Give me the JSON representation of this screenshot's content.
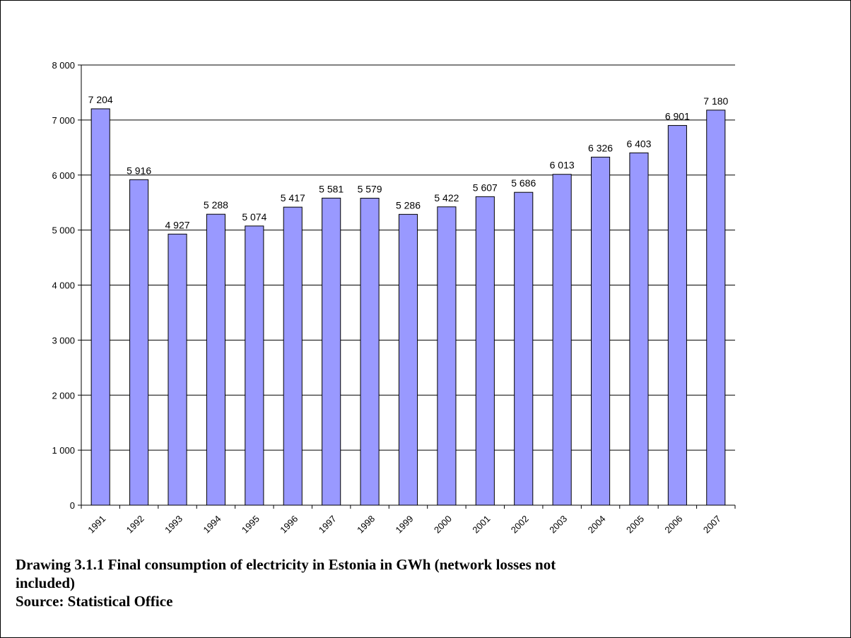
{
  "chart_data": {
    "type": "bar",
    "categories": [
      "1991",
      "1992",
      "1993",
      "1994",
      "1995",
      "1996",
      "1997",
      "1998",
      "1999",
      "2000",
      "2001",
      "2002",
      "2003",
      "2004",
      "2005",
      "2006",
      "2007"
    ],
    "values": [
      7204,
      5916,
      4927,
      5288,
      5074,
      5417,
      5581,
      5579,
      5286,
      5422,
      5607,
      5686,
      6013,
      6326,
      6403,
      6901,
      7180
    ],
    "value_labels": [
      "7 204",
      "5 916",
      "4 927",
      "5 288",
      "5 074",
      "5 417",
      "5 581",
      "5 579",
      "5 286",
      "5 422",
      "5 607",
      "5 686",
      "6 013",
      "6 326",
      "6 403",
      "6 901",
      "7 180"
    ],
    "yticks": [
      "0",
      "1 000",
      "2 000",
      "3 000",
      "4 000",
      "5 000",
      "6 000",
      "7 000",
      "8 000"
    ],
    "ylim": [
      0,
      8000
    ],
    "grid": true,
    "bar_color": "#9999ff",
    "bar_outline": "#000000",
    "title": "",
    "xlabel": "",
    "ylabel": ""
  },
  "caption": {
    "line1": "Drawing 3.1.1 Final consumption of electricity in Estonia in GWh (network losses not",
    "line2": "included)",
    "source": "Source: Statistical Office"
  }
}
